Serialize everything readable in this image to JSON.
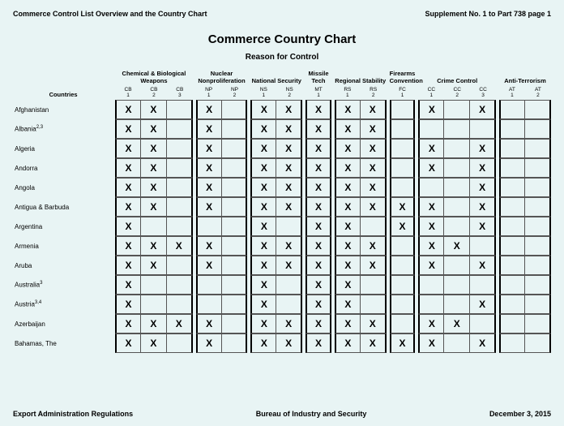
{
  "header_left": "Commerce Control List Overview and the Country Chart",
  "header_right": "Supplement No. 1 to Part 738 page 1",
  "title": "Commerce Country Chart",
  "subtitle": "Reason for Control",
  "footer_left": "Export Administration Regulations",
  "footer_center": "Bureau of Industry and Security",
  "footer_right": "December 3, 2015",
  "countries_label": "Countries",
  "groups": [
    {
      "label": "Chemical & Biological Weapons",
      "subs": [
        "CB 1",
        "CB 2",
        "CB 3"
      ]
    },
    {
      "label": "Nuclear Nonproliferation",
      "subs": [
        "NP 1",
        "NP 2"
      ]
    },
    {
      "label": "National Security",
      "subs": [
        "NS 1",
        "NS 2"
      ]
    },
    {
      "label": "Missile Tech",
      "subs": [
        "MT 1"
      ]
    },
    {
      "label": "Regional Stability",
      "subs": [
        "RS 1",
        "RS 2"
      ]
    },
    {
      "label": "Firearms Convention",
      "subs": [
        "FC 1"
      ]
    },
    {
      "label": "Crime Control",
      "subs": [
        "CC 1",
        "CC 2",
        "CC 3"
      ]
    },
    {
      "label": "Anti-Terrorism",
      "subs": [
        "AT 1",
        "AT 2"
      ]
    }
  ],
  "rows": [
    {
      "country": "Afghanistan",
      "sup": "",
      "marks": [
        1,
        1,
        0,
        1,
        0,
        1,
        1,
        1,
        1,
        1,
        0,
        1,
        0,
        1,
        0,
        0
      ]
    },
    {
      "country": "Albania",
      "sup": "2,3",
      "marks": [
        1,
        1,
        0,
        1,
        0,
        1,
        1,
        1,
        1,
        1,
        0,
        0,
        0,
        0,
        0,
        0
      ]
    },
    {
      "country": "Algeria",
      "sup": "",
      "marks": [
        1,
        1,
        0,
        1,
        0,
        1,
        1,
        1,
        1,
        1,
        0,
        1,
        0,
        1,
        0,
        0
      ]
    },
    {
      "country": "Andorra",
      "sup": "",
      "marks": [
        1,
        1,
        0,
        1,
        0,
        1,
        1,
        1,
        1,
        1,
        0,
        1,
        0,
        1,
        0,
        0
      ]
    },
    {
      "country": "Angola",
      "sup": "",
      "marks": [
        1,
        1,
        0,
        1,
        0,
        1,
        1,
        1,
        1,
        1,
        0,
        0,
        0,
        1,
        0,
        0
      ]
    },
    {
      "country": "Antigua & Barbuda",
      "sup": "",
      "marks": [
        1,
        1,
        0,
        1,
        0,
        1,
        1,
        1,
        1,
        1,
        1,
        1,
        0,
        1,
        0,
        0
      ]
    },
    {
      "country": "Argentina",
      "sup": "",
      "marks": [
        1,
        0,
        0,
        0,
        0,
        1,
        0,
        1,
        1,
        0,
        1,
        1,
        0,
        1,
        0,
        0
      ]
    },
    {
      "country": "Armenia",
      "sup": "",
      "marks": [
        1,
        1,
        1,
        1,
        0,
        1,
        1,
        1,
        1,
        1,
        0,
        1,
        1,
        0,
        0,
        0
      ]
    },
    {
      "country": "Aruba",
      "sup": "",
      "marks": [
        1,
        1,
        0,
        1,
        0,
        1,
        1,
        1,
        1,
        1,
        0,
        1,
        0,
        1,
        0,
        0
      ]
    },
    {
      "country": "Australia",
      "sup": "3",
      "marks": [
        1,
        0,
        0,
        0,
        0,
        1,
        0,
        1,
        1,
        0,
        0,
        0,
        0,
        0,
        0,
        0
      ]
    },
    {
      "country": "Austria",
      "sup": "3,4",
      "marks": [
        1,
        0,
        0,
        0,
        0,
        1,
        0,
        1,
        1,
        0,
        0,
        0,
        0,
        1,
        0,
        0
      ]
    },
    {
      "country": "Azerbaijan",
      "sup": "",
      "marks": [
        1,
        1,
        1,
        1,
        0,
        1,
        1,
        1,
        1,
        1,
        0,
        1,
        1,
        0,
        0,
        0
      ]
    },
    {
      "country": "Bahamas, The",
      "sup": "",
      "marks": [
        1,
        1,
        0,
        1,
        0,
        1,
        1,
        1,
        1,
        1,
        1,
        1,
        0,
        1,
        0,
        0
      ]
    }
  ],
  "colors": {
    "bg": "#e8f4f4",
    "border": "#000000",
    "line": "#555555"
  }
}
